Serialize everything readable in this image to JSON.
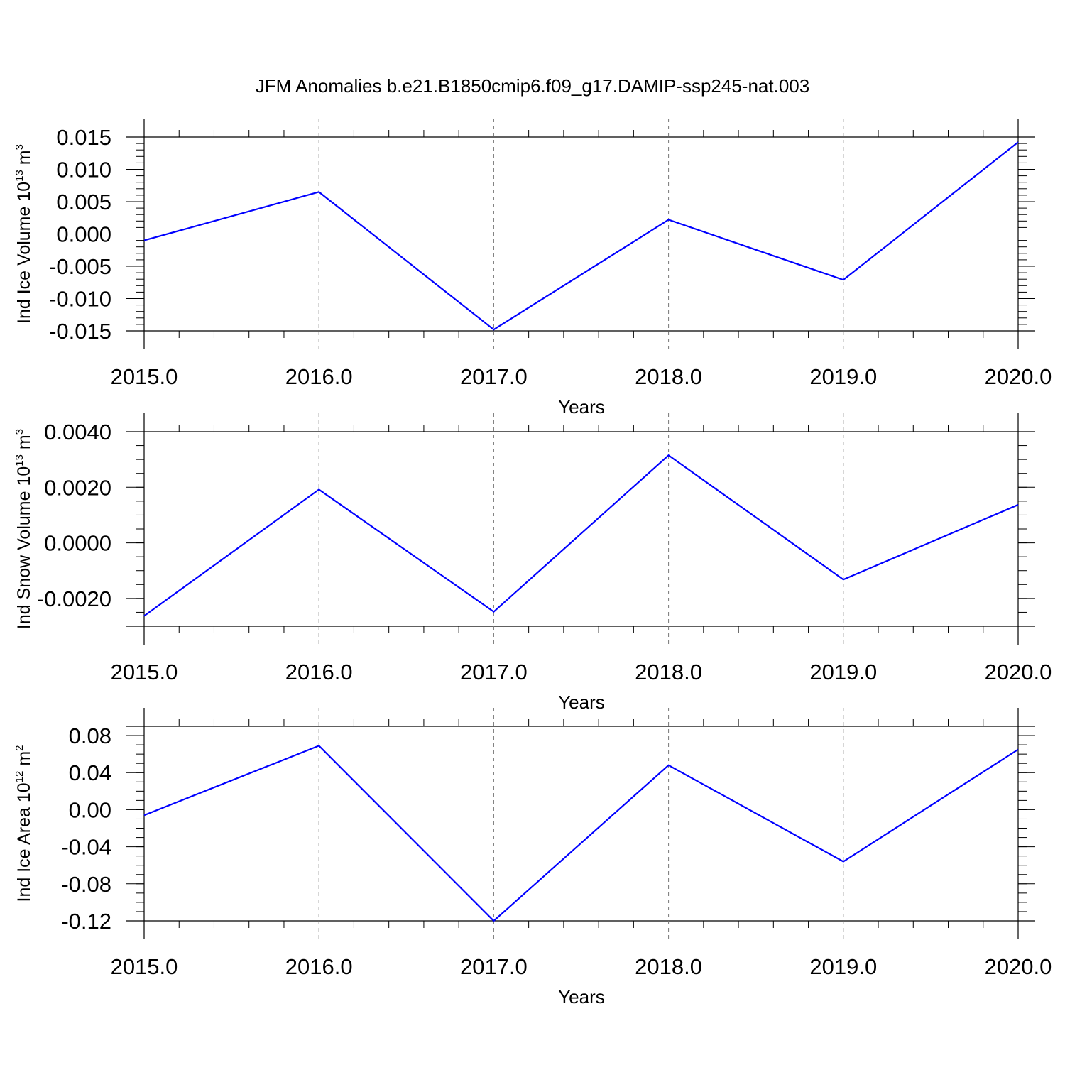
{
  "figure": {
    "title": "JFM Anomalies b.e21.B1850cmip6.f09_g17.DAMIP-ssp245-nat.003",
    "series_color": "#0000ff"
  },
  "chart_data": [
    {
      "type": "line",
      "xlabel": "Years",
      "ylabel": {
        "text": "Ind Ice Volume 10",
        "sup": "13",
        "unit": " m",
        "unit_sup": "3"
      },
      "x": [
        2015,
        2016,
        2017,
        2018,
        2019,
        2020
      ],
      "x_ticks": [
        "2015.0",
        "2016.0",
        "2017.0",
        "2018.0",
        "2019.0",
        "2020.0"
      ],
      "xlim": [
        2015,
        2020
      ],
      "ylim": [
        -0.015,
        0.015
      ],
      "y_ticks": [
        0.015,
        0.01,
        0.005,
        0.0,
        -0.005,
        -0.01,
        -0.015
      ],
      "y_tick_labels": [
        "0.015",
        "0.010",
        "0.005",
        "0.000",
        "-0.005",
        "-0.010",
        "-0.015"
      ],
      "y_minor_step": 0.001,
      "series": [
        {
          "values": [
            -0.001,
            0.0065,
            -0.0148,
            0.0022,
            -0.0071,
            0.0142
          ]
        }
      ],
      "grid": "vertical dashed at major x ticks",
      "legend": "none"
    },
    {
      "type": "line",
      "xlabel": "Years",
      "ylabel": {
        "text": "Ind Snow Volume 10",
        "sup": "13",
        "unit": " m",
        "unit_sup": "3"
      },
      "x": [
        2015,
        2016,
        2017,
        2018,
        2019,
        2020
      ],
      "x_ticks": [
        "2015.0",
        "2016.0",
        "2017.0",
        "2018.0",
        "2019.0",
        "2020.0"
      ],
      "xlim": [
        2015,
        2020
      ],
      "ylim": [
        -0.003,
        0.004
      ],
      "y_ticks": [
        0.004,
        0.002,
        0.0,
        -0.002
      ],
      "y_tick_labels": [
        "0.0040",
        "0.0020",
        "0.0000",
        "-0.0020"
      ],
      "y_minor_step": 0.0005,
      "series": [
        {
          "values": [
            -0.00263,
            0.00192,
            -0.00248,
            0.00315,
            -0.00132,
            0.00137
          ]
        }
      ],
      "grid": "vertical dashed at major x ticks",
      "legend": "none"
    },
    {
      "type": "line",
      "xlabel": "Years",
      "ylabel": {
        "text": "Ind Ice Area 10",
        "sup": "12",
        "unit": " m",
        "unit_sup": "2"
      },
      "x": [
        2015,
        2016,
        2017,
        2018,
        2019,
        2020
      ],
      "x_ticks": [
        "2015.0",
        "2016.0",
        "2017.0",
        "2018.0",
        "2019.0",
        "2020.0"
      ],
      "xlim": [
        2015,
        2020
      ],
      "ylim": [
        -0.12,
        0.09
      ],
      "y_ticks": [
        0.08,
        0.04,
        0.0,
        -0.04,
        -0.08,
        -0.12
      ],
      "y_tick_labels": [
        "0.08",
        "0.04",
        "0.00",
        "-0.04",
        "-0.08",
        "-0.12"
      ],
      "y_minor_step": 0.01,
      "series": [
        {
          "values": [
            -0.006,
            0.069,
            -0.12,
            0.048,
            -0.056,
            0.065
          ]
        }
      ],
      "grid": "vertical dashed at major x ticks",
      "legend": "none"
    }
  ]
}
